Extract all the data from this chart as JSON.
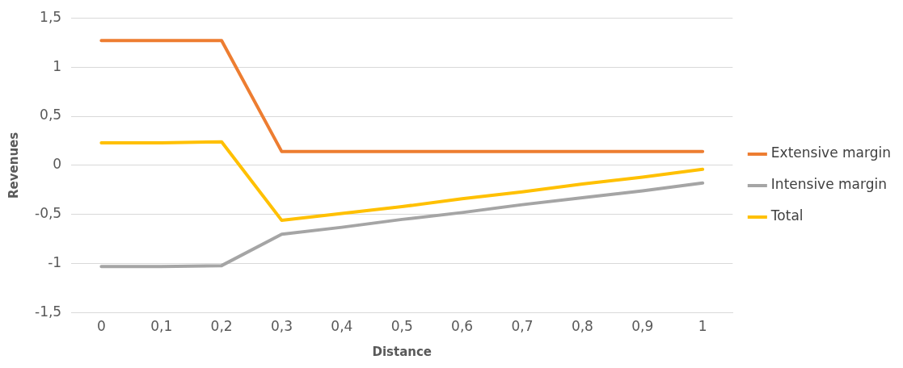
{
  "chart_data": {
    "type": "line",
    "xlabel": "Distance",
    "ylabel": "Revenues",
    "categories": [
      "0",
      "0,1",
      "0,2",
      "0,3",
      "0,4",
      "0,5",
      "0,6",
      "0,7",
      "0,8",
      "0,9",
      "1"
    ],
    "series": [
      {
        "name": "Extensive margin",
        "color": "#ed7d31",
        "values": [
          1.27,
          1.27,
          1.27,
          0.14,
          0.14,
          0.14,
          0.14,
          0.14,
          0.14,
          0.14,
          0.14
        ]
      },
      {
        "name": "Intensive margin",
        "color": "#a5a5a5",
        "values": [
          -1.03,
          -1.03,
          -1.02,
          -0.7,
          -0.63,
          -0.55,
          -0.48,
          -0.4,
          -0.33,
          -0.26,
          -0.18
        ]
      },
      {
        "name": "Total",
        "color": "#ffc000",
        "values": [
          0.23,
          0.23,
          0.24,
          -0.56,
          -0.49,
          -0.42,
          -0.34,
          -0.27,
          -0.19,
          -0.12,
          -0.04
        ]
      }
    ],
    "ylim": [
      -1.5,
      1.5
    ],
    "yticks": [
      {
        "value": -1.5,
        "label": "-1,5"
      },
      -1,
      {
        "value": -0.5,
        "label": "-0,5"
      },
      0,
      {
        "value": 0.5,
        "label": "0,5"
      },
      1,
      {
        "value": 1.5,
        "label": "1,5"
      }
    ],
    "grid": "y",
    "legend": "right",
    "marker": "none",
    "line_style": "solid"
  }
}
